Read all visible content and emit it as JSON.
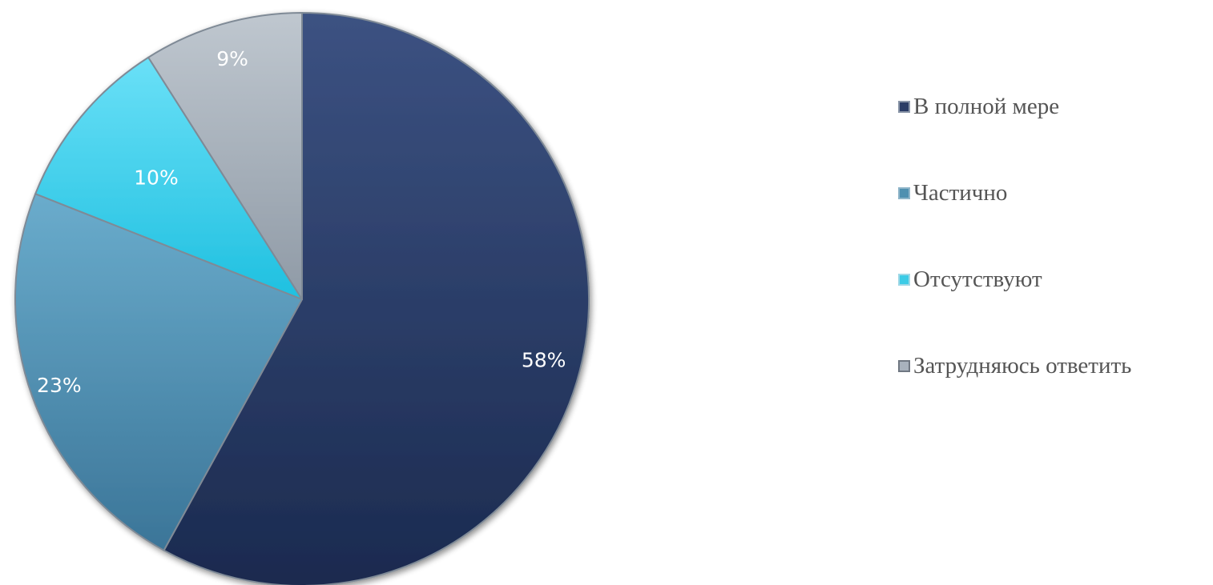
{
  "chart_data": {
    "type": "pie",
    "slices": [
      {
        "name": "В полной мере",
        "value": 58,
        "label": "58%",
        "color": "#2b3d66"
      },
      {
        "name": "Частично",
        "value": 23,
        "label": "23%",
        "color": "#4f90b0"
      },
      {
        "name": "Отсутствуют",
        "value": 10,
        "label": "10%",
        "color": "#3ccbe6"
      },
      {
        "name": "Затрудняюсь ответить",
        "value": 9,
        "label": "9%",
        "color": "#a8b2bd"
      }
    ],
    "legend_position": "right",
    "data_labels": true
  }
}
